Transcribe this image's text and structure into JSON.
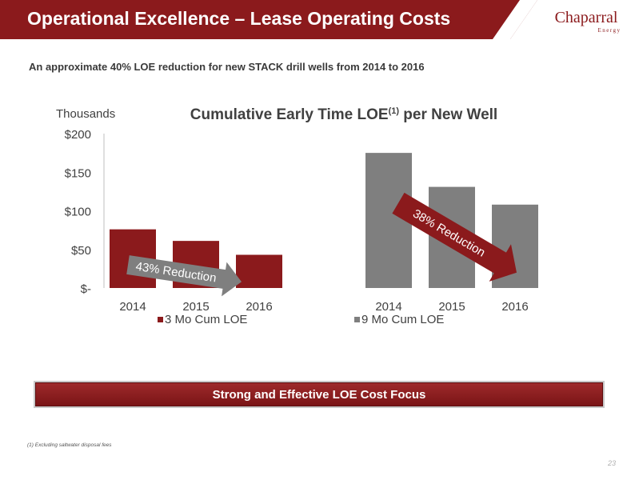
{
  "header": {
    "title": "Operational Excellence – Lease Operating Costs",
    "logo_name": "Chaparral",
    "logo_sub": "Energy",
    "color": "#8b1a1c"
  },
  "subtitle": "An approximate 40% LOE reduction for new STACK drill wells from 2014 to 2016",
  "chart_data": {
    "type": "bar",
    "title": "Cumulative Early Time LOE",
    "title_superscript": "(1)",
    "title_suffix": " per New Well",
    "unit_label": "Thousands",
    "ylim": [
      0,
      200
    ],
    "yticks": [
      0,
      50,
      100,
      150,
      200
    ],
    "ytick_labels": [
      "$-",
      "$50",
      "$100",
      "$150",
      "$200"
    ],
    "grid": false,
    "legend_position": "bottom",
    "series": [
      {
        "name": "3 Mo Cum LOE",
        "color": "#8b1a1c",
        "categories": [
          "2014",
          "2015",
          "2016"
        ],
        "values": [
          76,
          61,
          43
        ]
      },
      {
        "name": "9 Mo Cum LOE",
        "color": "#7f7f7f",
        "categories": [
          "2014",
          "2015",
          "2016"
        ],
        "values": [
          175,
          131,
          108
        ]
      }
    ],
    "annotations": [
      {
        "text": "43% Reduction",
        "series": "3 Mo Cum LOE",
        "arrow_color": "#7f7f7f"
      },
      {
        "text": "38% Reduction",
        "series": "9 Mo Cum LOE",
        "arrow_color": "#8b1a1c"
      }
    ]
  },
  "banner": {
    "text": "Strong and Effective LOE Cost Focus"
  },
  "footnote": "(1) Excluding saltwater disposal fees",
  "page_number": "23"
}
